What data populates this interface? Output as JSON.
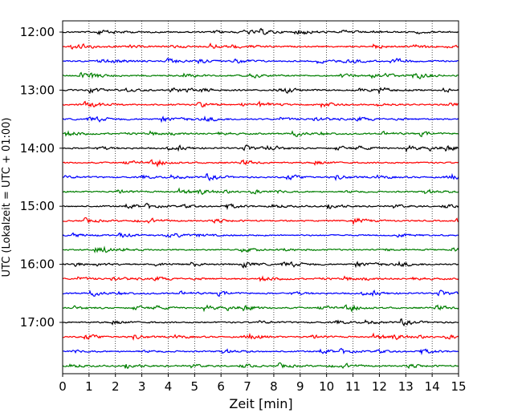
{
  "chart_data": {
    "type": "line",
    "title": "",
    "xlabel": "Zeit  [min]",
    "ylabel": "UTC (Lokalzeit = UTC + 01:00)",
    "xlim": [
      0,
      15
    ],
    "x_ticks": [
      "0",
      "1",
      "2",
      "3",
      "4",
      "5",
      "6",
      "7",
      "8",
      "9",
      "10",
      "11",
      "12",
      "13",
      "14",
      "15"
    ],
    "y_tick_labels": [
      "12:00",
      "13:00",
      "14:00",
      "15:00",
      "16:00",
      "17:00"
    ],
    "grid": "vertical-dotted",
    "trace_interval_minutes": 15,
    "trace_count": 24,
    "trace_colors": [
      "#000000",
      "#ff0000",
      "#0000ff",
      "#007f00"
    ]
  }
}
